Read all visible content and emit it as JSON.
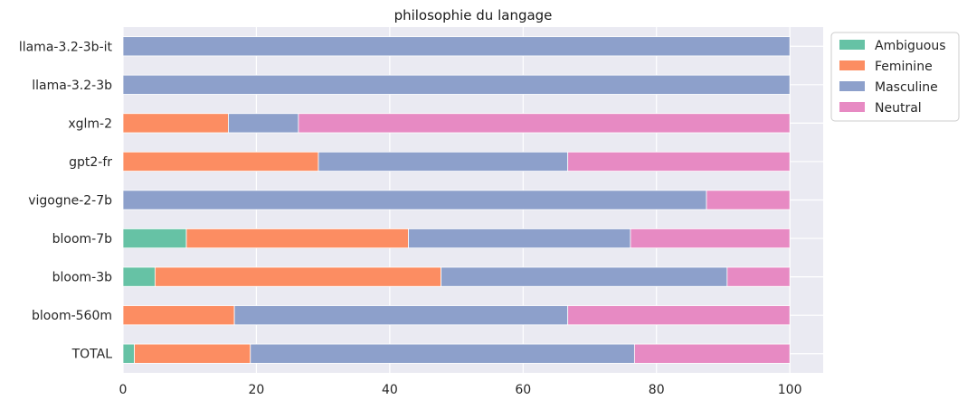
{
  "chart_data": {
    "type": "bar",
    "orientation": "horizontal",
    "stacked": true,
    "title": "philosophie du langage",
    "xlabel": "",
    "ylabel": "",
    "xlim": [
      0,
      105
    ],
    "xticks": [
      0,
      20,
      40,
      60,
      80,
      100
    ],
    "grid": true,
    "legend_position": "outside-top-right",
    "categories": [
      "llama-3.2-3b-it",
      "llama-3.2-3b",
      "xglm-2",
      "gpt2-fr",
      "vigogne-2-7b",
      "bloom-7b",
      "bloom-3b",
      "bloom-560m",
      "TOTAL"
    ],
    "series": [
      {
        "name": "Ambiguous",
        "color": "#66c2a5",
        "values": [
          0,
          0,
          0,
          0,
          0,
          9.5,
          4.8,
          0,
          1.7
        ]
      },
      {
        "name": "Feminine",
        "color": "#fc8d62",
        "values": [
          0,
          0,
          15.8,
          29.3,
          0,
          33.3,
          42.9,
          16.7,
          17.4
        ]
      },
      {
        "name": "Masculine",
        "color": "#8da0cb",
        "values": [
          100,
          100,
          10.5,
          37.4,
          87.5,
          33.3,
          42.9,
          50.0,
          57.6
        ]
      },
      {
        "name": "Neutral",
        "color": "#e78ac3",
        "values": [
          0,
          0,
          73.7,
          33.3,
          12.5,
          23.9,
          9.4,
          33.3,
          23.3
        ]
      }
    ]
  }
}
